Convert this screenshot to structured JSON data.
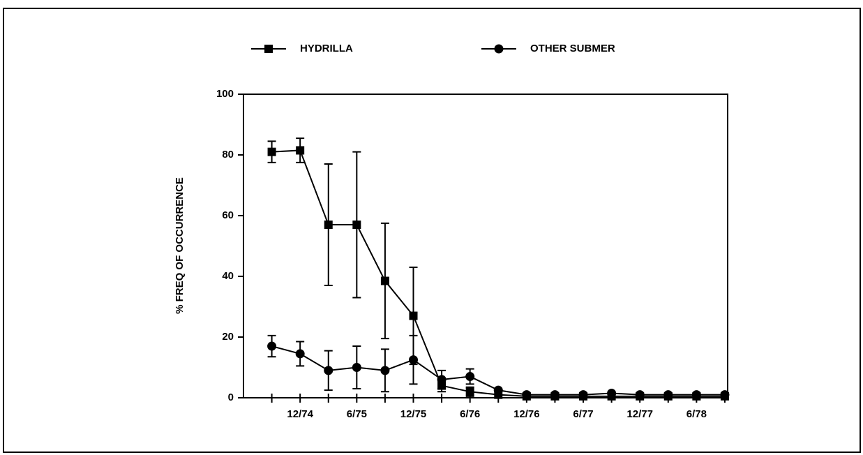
{
  "chart_data": {
    "type": "line",
    "ylabel": "% FREQ OF OCCURRENCE",
    "categories": [
      null,
      "12/74",
      null,
      "6/75",
      null,
      "12/75",
      null,
      "6/76",
      null,
      "12/76",
      null,
      "6/77",
      null,
      "12/77",
      null,
      "6/78",
      null
    ],
    "series": [
      {
        "name": "HYDRILLA",
        "color": "#000000",
        "marker": "square",
        "values": [
          81,
          81.5,
          57,
          57,
          38.5,
          27,
          4,
          2,
          1,
          0.5,
          0.5,
          0.5,
          0.5,
          0.5,
          0.5,
          0.5,
          0.5
        ],
        "errors": [
          3.5,
          4,
          20,
          24,
          19,
          16,
          2,
          1.5,
          0,
          0,
          0,
          0,
          0,
          0,
          0,
          0,
          0
        ]
      },
      {
        "name": "OTHER SUBMER",
        "color": "#000000",
        "marker": "circle",
        "values": [
          17,
          14.5,
          9,
          10,
          9,
          12.5,
          6,
          7,
          2.5,
          1,
          1,
          1,
          1.5,
          1,
          1,
          1,
          1
        ],
        "errors": [
          3.5,
          4,
          6.5,
          7,
          7,
          8,
          3,
          2.5,
          0,
          0,
          0,
          0,
          0,
          0,
          0,
          0,
          0
        ]
      }
    ],
    "ylim": [
      0,
      100
    ],
    "yticks": [
      0,
      20,
      40,
      60,
      80,
      100
    ],
    "grid": false
  }
}
